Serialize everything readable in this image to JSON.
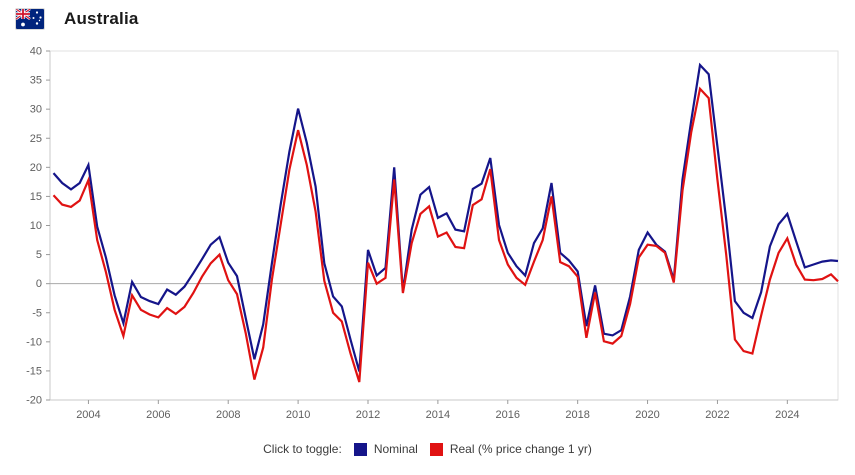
{
  "header": {
    "title": "Australia",
    "flag_country": "Australia"
  },
  "legend": {
    "prompt": "Click to toggle:",
    "items": [
      {
        "label": "Nominal",
        "color": "#15158a"
      },
      {
        "label": "Real (% price change 1 yr)",
        "color": "#e01212"
      }
    ]
  },
  "colors": {
    "nominal_line": "#15158a",
    "real_line": "#e01212",
    "zero_line": "#aaaaaa",
    "plot_border": "#e2e2e2",
    "axis_line": "#c9c9c9",
    "tick_text": "#5f5f5f"
  },
  "chart_data": {
    "type": "line",
    "title": "Australia",
    "xlabel": "",
    "ylabel": "",
    "xlim": [
      2002.9,
      2025.45
    ],
    "ylim": [
      -20,
      40
    ],
    "x_start": 2003.0,
    "x_step": 0.25,
    "x_tick_labels": [
      2004,
      2006,
      2008,
      2010,
      2012,
      2014,
      2016,
      2018,
      2020,
      2022,
      2024
    ],
    "y_tick_labels": [
      40,
      35,
      30,
      25,
      20,
      15,
      10,
      5,
      0,
      -5,
      -10,
      -15,
      -20
    ],
    "y_tick_step": 5,
    "gridlines": [
      0
    ],
    "grid": "zero-line-only",
    "legend_position": "bottom",
    "series": [
      {
        "name": "Nominal",
        "color": "#15158a",
        "values": [
          19.0,
          17.3,
          16.2,
          17.3,
          20.4,
          9.8,
          4.5,
          -2.0,
          -6.8,
          0.3,
          -2.3,
          -3.0,
          -3.5,
          -1.0,
          -1.9,
          -0.5,
          1.8,
          4.2,
          6.7,
          8.0,
          3.6,
          1.3,
          -5.9,
          -13.0,
          -7.0,
          3.5,
          13.5,
          22.7,
          30.1,
          24.2,
          16.7,
          3.5,
          -2.2,
          -3.9,
          -9.6,
          -15.1,
          5.8,
          1.4,
          2.7,
          20.0,
          -1.3,
          9.3,
          15.3,
          16.6,
          11.3,
          12.1,
          9.3,
          9.0,
          16.3,
          17.2,
          21.6,
          10.1,
          5.3,
          3.0,
          1.4,
          7.0,
          9.5,
          17.3,
          5.3,
          4.0,
          2.1,
          -7.3,
          -0.3,
          -8.6,
          -8.9,
          -8.0,
          -2.2,
          5.8,
          8.8,
          6.7,
          5.5,
          0.7,
          17.9,
          28.0,
          37.6,
          36.0,
          23.6,
          11.0,
          -3.0,
          -5.0,
          -5.9,
          -1.5,
          6.4,
          10.2,
          12.0,
          7.3,
          2.8,
          3.3,
          3.8,
          4.0,
          3.9
        ]
      },
      {
        "name": "Real (% price change 1 yr)",
        "color": "#e01212",
        "values": [
          15.2,
          13.6,
          13.2,
          14.3,
          17.8,
          7.5,
          2.0,
          -4.5,
          -9.0,
          -2.0,
          -4.5,
          -5.3,
          -5.8,
          -4.2,
          -5.2,
          -4.0,
          -1.6,
          1.2,
          3.5,
          5.0,
          0.6,
          -1.8,
          -8.5,
          -16.5,
          -11.0,
          0.7,
          10.1,
          19.6,
          26.4,
          20.4,
          12.4,
          0.5,
          -5.0,
          -6.5,
          -12.0,
          -16.9,
          3.6,
          0.0,
          1.0,
          17.9,
          -1.6,
          7.0,
          12.0,
          13.3,
          8.1,
          8.8,
          6.3,
          6.1,
          13.5,
          14.5,
          19.7,
          7.5,
          3.3,
          1.0,
          -0.2,
          3.8,
          7.5,
          15.0,
          3.7,
          3.0,
          1.2,
          -9.3,
          -1.5,
          -9.9,
          -10.3,
          -9.0,
          -3.5,
          4.5,
          6.7,
          6.5,
          5.3,
          0.2,
          16.0,
          26.0,
          33.5,
          31.9,
          17.9,
          5.0,
          -9.6,
          -11.6,
          -12.0,
          -5.5,
          0.7,
          5.3,
          7.8,
          3.3,
          0.7,
          0.6,
          0.8,
          1.6,
          0.4
        ]
      }
    ]
  }
}
